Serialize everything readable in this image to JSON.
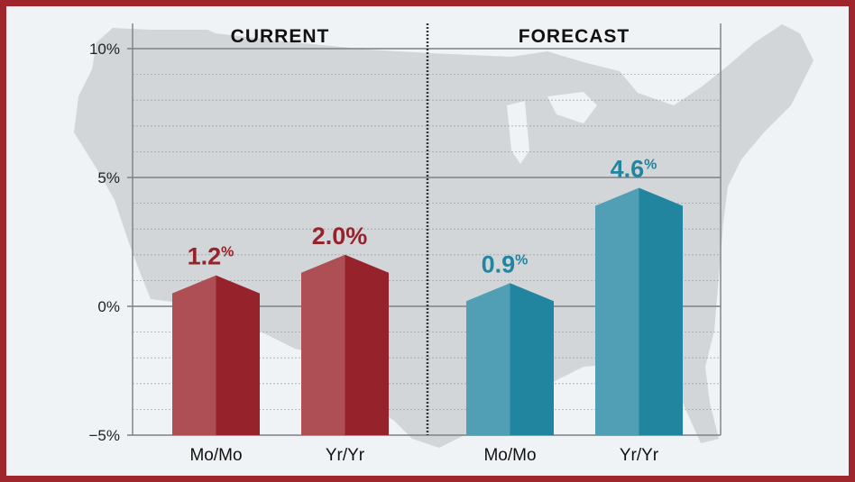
{
  "chart_data": {
    "type": "bar",
    "title": "",
    "groups": [
      {
        "name": "CURRENT",
        "categories": [
          "Mo/Mo",
          "Yr/Yr"
        ],
        "values": [
          1.2,
          2.0
        ],
        "labels": [
          "1.2",
          "2.0"
        ],
        "color_light": "#ad4f55",
        "color_dark": "#96232b"
      },
      {
        "name": "FORECAST",
        "categories": [
          "Mo/Mo",
          "Yr/Yr"
        ],
        "values": [
          0.9,
          4.6
        ],
        "labels": [
          "0.9",
          "4.6"
        ],
        "color_light": "#519fb4",
        "color_dark": "#22859f"
      }
    ],
    "yticks": [
      "10%",
      "5%",
      "0%",
      "−5%"
    ],
    "ytick_values": [
      10,
      5,
      0,
      -5
    ],
    "ylim": [
      -5,
      10
    ],
    "xlabel": "",
    "ylabel": "",
    "grid": true,
    "minor_grid_step": 1,
    "background": "US map silhouette"
  },
  "colors": {
    "frame": "#a0262e",
    "bg": "#eff3f6",
    "map": "#d3d6d9",
    "axis": "#7b8086"
  }
}
